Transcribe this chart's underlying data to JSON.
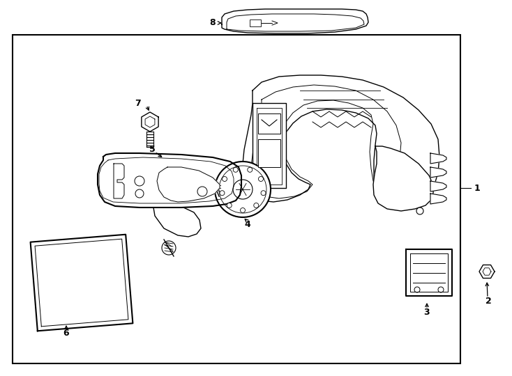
{
  "background": "#ffffff",
  "border_color": "#000000",
  "fig_width": 7.34,
  "fig_height": 5.4,
  "dpi": 100
}
